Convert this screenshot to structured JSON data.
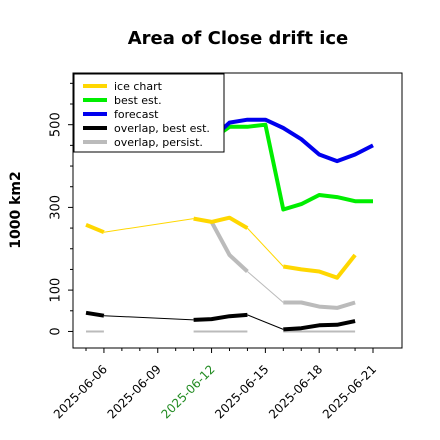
{
  "chart_data": {
    "type": "line",
    "title": "Area of Close drift ice",
    "ylabel": "1000 km2",
    "xlabel": "",
    "x_range": [
      "2025-06-05",
      "2025-06-21"
    ],
    "ylim": [
      -40,
      625
    ],
    "yticks": [
      0,
      100,
      300,
      500
    ],
    "xticks": [
      {
        "date": "2025-06-06",
        "label": "2025-06-06",
        "color": "#000000"
      },
      {
        "date": "2025-06-09",
        "label": "2025-06-09",
        "color": "#000000"
      },
      {
        "date": "2025-06-12",
        "label": "2025-06-12",
        "color": "#228B22"
      },
      {
        "date": "2025-06-15",
        "label": "2025-06-15",
        "color": "#000000"
      },
      {
        "date": "2025-06-18",
        "label": "2025-06-18",
        "color": "#000000"
      },
      {
        "date": "2025-06-21",
        "label": "2025-06-21",
        "color": "#000000"
      }
    ],
    "grid": false,
    "legend_position": "top-left",
    "series": [
      {
        "name": "ice chart",
        "color": "#FFD700",
        "segments": [
          [
            [
              "2025-06-05",
              258
            ],
            [
              "2025-06-06",
              240
            ]
          ],
          [
            [
              "2025-06-11",
              273
            ],
            [
              "2025-06-12",
              265
            ],
            [
              "2025-06-13",
              275
            ],
            [
              "2025-06-14",
              250
            ]
          ],
          [
            [
              "2025-06-16",
              157
            ],
            [
              "2025-06-17",
              150
            ],
            [
              "2025-06-18",
              145
            ],
            [
              "2025-06-19",
              130
            ],
            [
              "2025-06-20",
              185
            ]
          ]
        ],
        "connectors": [
          [
            [
              "2025-06-06",
              240
            ],
            [
              "2025-06-11",
              273
            ]
          ],
          [
            [
              "2025-06-14",
              250
            ],
            [
              "2025-06-16",
              157
            ]
          ]
        ]
      },
      {
        "name": "best est.",
        "color": "#00EE00",
        "segments": [
          [
            [
              "2025-06-12",
              465
            ],
            [
              "2025-06-13",
              495
            ],
            [
              "2025-06-14",
              495
            ],
            [
              "2025-06-15",
              500
            ],
            [
              "2025-06-16",
              295
            ],
            [
              "2025-06-17",
              308
            ],
            [
              "2025-06-18",
              330
            ],
            [
              "2025-06-19",
              325
            ],
            [
              "2025-06-20",
              315
            ],
            [
              "2025-06-21",
              315
            ]
          ]
        ],
        "connectors": []
      },
      {
        "name": "forecast",
        "color": "#0000EE",
        "segments": [
          [
            [
              "2025-06-12",
              465
            ],
            [
              "2025-06-13",
              505
            ],
            [
              "2025-06-14",
              512
            ],
            [
              "2025-06-15",
              512
            ],
            [
              "2025-06-16",
              492
            ],
            [
              "2025-06-17",
              465
            ],
            [
              "2025-06-18",
              428
            ],
            [
              "2025-06-19",
              412
            ],
            [
              "2025-06-20",
              428
            ],
            [
              "2025-06-21",
              450
            ]
          ]
        ],
        "connectors": []
      },
      {
        "name": "overlap, best est.",
        "color": "#000000",
        "segments": [
          [
            [
              "2025-06-05",
              45
            ],
            [
              "2025-06-06",
              38
            ]
          ],
          [
            [
              "2025-06-11",
              28
            ],
            [
              "2025-06-12",
              30
            ],
            [
              "2025-06-13",
              37
            ],
            [
              "2025-06-14",
              40
            ]
          ],
          [
            [
              "2025-06-16",
              5
            ],
            [
              "2025-06-17",
              8
            ],
            [
              "2025-06-18",
              15
            ],
            [
              "2025-06-19",
              16
            ],
            [
              "2025-06-20",
              25
            ]
          ]
        ],
        "connectors": [
          [
            [
              "2025-06-06",
              38
            ],
            [
              "2025-06-11",
              28
            ]
          ],
          [
            [
              "2025-06-14",
              40
            ],
            [
              "2025-06-16",
              5
            ]
          ]
        ]
      },
      {
        "name": "overlap, persist.",
        "color": "#BBBBBB",
        "segments": [
          [
            [
              "2025-06-12",
              265
            ],
            [
              "2025-06-13",
              185
            ],
            [
              "2025-06-14",
              145
            ]
          ],
          [
            [
              "2025-06-16",
              70
            ],
            [
              "2025-06-17",
              70
            ],
            [
              "2025-06-18",
              60
            ],
            [
              "2025-06-19",
              57
            ],
            [
              "2025-06-20",
              70
            ]
          ]
        ],
        "connectors": [
          [
            [
              "2025-06-14",
              145
            ],
            [
              "2025-06-16",
              70
            ]
          ]
        ]
      },
      {
        "name": "",
        "color": "#BBBBBB",
        "segments": [
          [
            [
              "2025-06-05",
              0
            ],
            [
              "2025-06-06",
              0
            ]
          ],
          [
            [
              "2025-06-11",
              0
            ],
            [
              "2025-06-14",
              0
            ]
          ],
          [
            [
              "2025-06-16",
              0
            ],
            [
              "2025-06-20",
              0
            ]
          ]
        ],
        "connectors": []
      }
    ]
  }
}
